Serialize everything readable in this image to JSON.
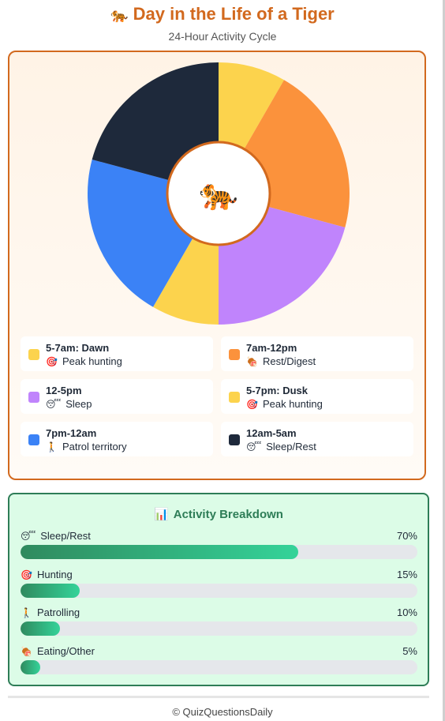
{
  "header": {
    "title_icon": "🐅",
    "title": "Day in the Life of a Tiger",
    "subtitle": "24-Hour Activity Cycle"
  },
  "chart_data": {
    "type": "donut",
    "center_icon": "🐅",
    "segments": [
      {
        "time": "5-7am: Dawn",
        "activity": "Peak hunting",
        "icon": "🎯",
        "hours": 2,
        "color": "#fcd34d"
      },
      {
        "time": "7am-12pm",
        "activity": "Rest/Digest",
        "icon": "🍖",
        "hours": 5,
        "color": "#fb923c"
      },
      {
        "time": "12-5pm",
        "activity": "Sleep",
        "icon": "😴",
        "hours": 5,
        "color": "#c084fc"
      },
      {
        "time": "5-7pm: Dusk",
        "activity": "Peak hunting",
        "icon": "🎯",
        "hours": 2,
        "color": "#fcd34d"
      },
      {
        "time": "7pm-12am",
        "activity": "Patrol territory",
        "icon": "🚶",
        "hours": 5,
        "color": "#3b82f6"
      },
      {
        "time": "12am-5am",
        "activity": "Sleep/Rest",
        "icon": "😴",
        "hours": 5,
        "color": "#1e293b"
      }
    ]
  },
  "breakdown": {
    "title_icon": "📊",
    "title": "Activity Breakdown",
    "items": [
      {
        "icon": "😴",
        "label": "Sleep/Rest",
        "pct_text": "70%",
        "value": 70
      },
      {
        "icon": "🎯",
        "label": "Hunting",
        "pct_text": "15%",
        "value": 15
      },
      {
        "icon": "🚶",
        "label": "Patrolling",
        "pct_text": "10%",
        "value": 10
      },
      {
        "icon": "🍖",
        "label": "Eating/Other",
        "pct_text": "5%",
        "value": 5
      }
    ]
  },
  "footer": {
    "text": "© QuizQuestionsDaily"
  }
}
